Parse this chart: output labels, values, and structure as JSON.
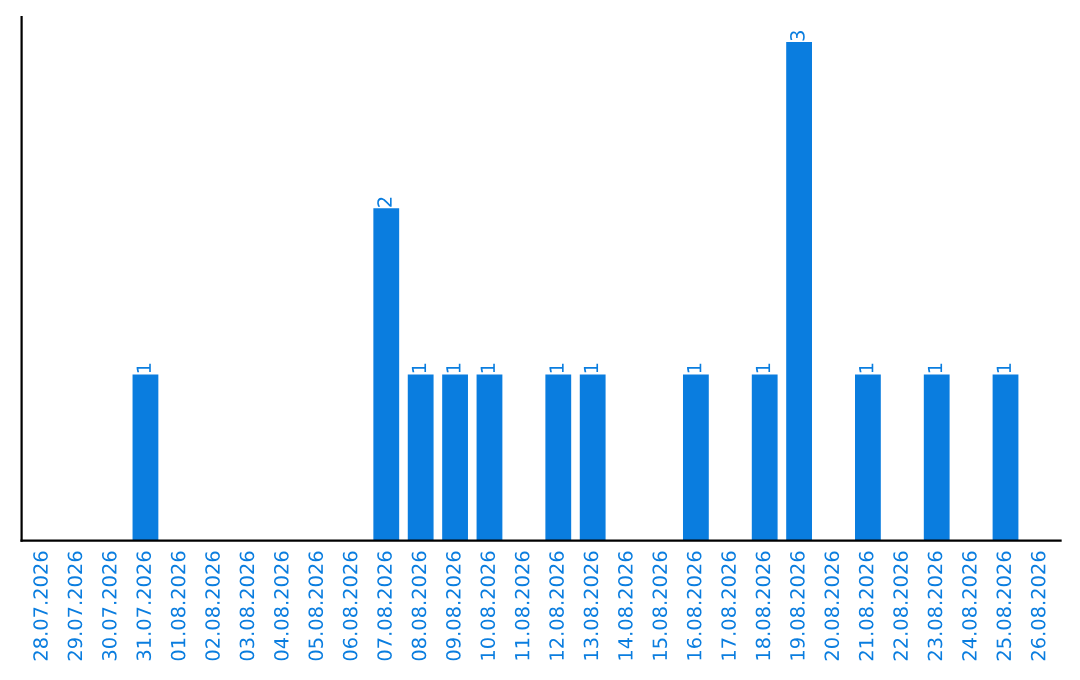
{
  "chart_data": {
    "type": "bar",
    "categories": [
      "28.07.2026",
      "29.07.2026",
      "30.07.2026",
      "31.07.2026",
      "01.08.2026",
      "02.08.2026",
      "03.08.2026",
      "04.08.2026",
      "05.08.2026",
      "06.08.2026",
      "07.08.2026",
      "08.08.2026",
      "09.08.2026",
      "10.08.2026",
      "11.08.2026",
      "12.08.2026",
      "13.08.2026",
      "14.08.2026",
      "15.08.2026",
      "16.08.2026",
      "17.08.2026",
      "18.08.2026",
      "19.08.2026",
      "20.08.2026",
      "21.08.2026",
      "22.08.2026",
      "23.08.2026",
      "24.08.2026",
      "25.08.2026",
      "26.08.2026"
    ],
    "values": [
      0,
      0,
      0,
      1,
      0,
      0,
      0,
      0,
      0,
      0,
      2,
      1,
      1,
      1,
      0,
      1,
      1,
      0,
      0,
      1,
      0,
      1,
      3,
      0,
      1,
      0,
      1,
      0,
      1,
      0
    ],
    "value_labels": [
      null,
      null,
      null,
      "1",
      null,
      null,
      null,
      null,
      null,
      null,
      "2",
      "1",
      "1",
      "1",
      null,
      "1",
      "1",
      null,
      null,
      "1",
      null,
      "1",
      "3",
      null,
      "1",
      null,
      "1",
      null,
      "1",
      null
    ],
    "color": "#0a7ddf",
    "tick_labels": "x",
    "grid": false,
    "legend": false
  }
}
